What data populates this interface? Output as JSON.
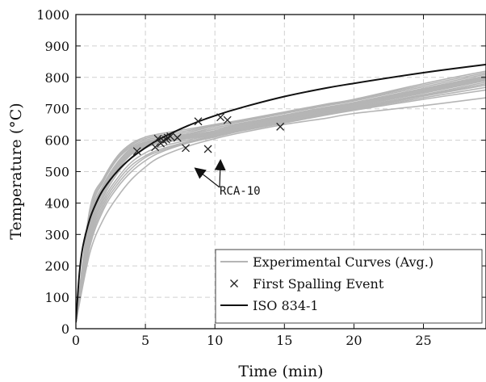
{
  "chart_data": {
    "type": "line",
    "title": "",
    "xlabel": "Time (min)",
    "ylabel": "Temperature (°C)",
    "xlim": [
      0,
      29.5
    ],
    "ylim": [
      0,
      1000
    ],
    "x_ticks": [
      0,
      5,
      10,
      15,
      20,
      25
    ],
    "x_tick_labels": [
      "0",
      "5",
      "10",
      "15",
      "20",
      "25"
    ],
    "y_ticks": [
      0,
      100,
      200,
      300,
      400,
      500,
      600,
      700,
      800,
      900,
      1000
    ],
    "y_tick_labels": [
      "0",
      "100",
      "200",
      "300",
      "400",
      "500",
      "600",
      "700",
      "800",
      "900",
      "1000"
    ],
    "grid": true,
    "legend_position": "bottom-right",
    "legend": [
      {
        "label": "Experimental Curves (Avg.)",
        "marker": "line",
        "color": "#b5b5b5"
      },
      {
        "label": "First Spalling Event",
        "marker": "x",
        "color": "#222222"
      },
      {
        "label": "ISO 834-1",
        "marker": "line",
        "color": "#111111"
      }
    ],
    "iso_curve": {
      "color": "#111111",
      "x": [
        0,
        0.25,
        0.5,
        1,
        1.5,
        2,
        3,
        4,
        5,
        6,
        8,
        10,
        12,
        15,
        18,
        20,
        25,
        29.5
      ],
      "y": [
        20,
        175,
        261,
        349,
        404,
        445,
        502,
        544,
        576,
        603,
        645,
        678,
        705,
        739,
        766,
        781,
        815,
        841
      ]
    },
    "experimental_curves": {
      "color": "#b5b5b5",
      "series": [
        {
          "x": [
            0,
            1,
            2,
            3,
            4,
            5,
            6,
            8,
            10,
            12,
            15,
            18,
            20,
            25,
            29.5
          ],
          "y": [
            20,
            340,
            450,
            520,
            565,
            590,
            600,
            615,
            630,
            650,
            675,
            700,
            715,
            760,
            800
          ]
        },
        {
          "x": [
            0,
            1,
            2,
            3,
            4,
            5,
            6,
            8,
            10,
            12,
            15,
            18,
            20,
            25,
            29.5
          ],
          "y": [
            20,
            320,
            440,
            510,
            560,
            585,
            595,
            610,
            625,
            645,
            670,
            695,
            710,
            755,
            795
          ]
        },
        {
          "x": [
            0,
            1,
            2,
            3,
            4,
            5,
            6,
            8,
            10,
            12,
            15,
            18,
            20,
            25,
            29.5
          ],
          "y": [
            20,
            360,
            470,
            540,
            580,
            600,
            610,
            625,
            645,
            660,
            685,
            710,
            725,
            770,
            810
          ]
        },
        {
          "x": [
            0,
            1,
            2,
            3,
            4,
            5,
            6,
            8,
            10,
            12,
            15,
            18,
            20,
            25,
            29.5
          ],
          "y": [
            20,
            300,
            420,
            495,
            545,
            575,
            590,
            605,
            620,
            640,
            665,
            690,
            705,
            745,
            785
          ]
        },
        {
          "x": [
            0,
            1,
            2,
            3,
            4,
            5,
            6,
            8,
            10,
            12,
            15,
            18,
            20,
            25,
            29.5
          ],
          "y": [
            20,
            380,
            480,
            550,
            590,
            610,
            620,
            635,
            650,
            665,
            690,
            715,
            730,
            780,
            820
          ]
        },
        {
          "x": [
            0,
            1,
            2,
            3,
            4,
            5,
            6,
            8,
            10,
            12,
            15,
            18,
            20,
            25,
            29.5
          ],
          "y": [
            20,
            280,
            400,
            470,
            520,
            550,
            570,
            595,
            615,
            635,
            660,
            685,
            700,
            740,
            775
          ]
        },
        {
          "x": [
            0,
            1,
            2,
            3,
            4,
            5,
            6,
            8,
            10,
            12,
            15,
            18,
            20,
            25,
            29.5
          ],
          "y": [
            20,
            260,
            380,
            450,
            500,
            535,
            560,
            590,
            610,
            630,
            655,
            680,
            695,
            730,
            760
          ]
        },
        {
          "x": [
            0,
            1,
            2,
            3,
            4,
            5,
            6,
            8,
            10,
            12,
            15,
            18,
            20,
            25,
            29.5
          ],
          "y": [
            20,
            240,
            350,
            420,
            475,
            515,
            545,
            580,
            605,
            625,
            650,
            670,
            685,
            710,
            735
          ]
        },
        {
          "x": [
            0,
            1,
            2,
            3,
            4,
            5,
            6,
            8,
            10,
            12,
            15,
            18,
            20,
            25,
            29.5
          ],
          "y": [
            20,
            350,
            460,
            530,
            575,
            595,
            605,
            620,
            640,
            655,
            680,
            705,
            720,
            765,
            805
          ]
        },
        {
          "x": [
            0,
            1,
            2,
            3,
            4,
            5,
            6,
            8,
            10,
            12,
            15,
            18,
            20,
            25,
            29.5
          ],
          "y": [
            20,
            330,
            445,
            515,
            562,
            588,
            598,
            612,
            628,
            648,
            672,
            698,
            712,
            758,
            798
          ]
        },
        {
          "x": [
            0,
            1,
            2,
            3,
            4,
            5,
            6,
            8,
            10,
            12,
            15,
            18,
            20,
            25,
            29.5
          ],
          "y": [
            20,
            310,
            430,
            505,
            555,
            580,
            592,
            607,
            622,
            642,
            668,
            693,
            708,
            750,
            790
          ]
        },
        {
          "x": [
            0,
            1,
            2,
            3,
            4,
            5,
            6,
            8,
            10,
            12,
            15,
            18,
            20,
            25,
            29.5
          ],
          "y": [
            20,
            370,
            475,
            545,
            585,
            605,
            615,
            630,
            648,
            662,
            688,
            712,
            728,
            775,
            815
          ]
        },
        {
          "x": [
            0,
            1,
            2,
            3,
            4,
            5,
            6,
            8,
            10,
            12,
            15,
            18,
            20,
            25,
            29.5
          ],
          "y": [
            20,
            290,
            410,
            480,
            530,
            560,
            578,
            600,
            618,
            638,
            662,
            688,
            702,
            742,
            780
          ]
        },
        {
          "x": [
            0,
            1,
            2,
            3,
            4,
            5,
            6,
            8,
            10,
            12,
            15,
            18,
            20,
            25,
            29.5
          ],
          "y": [
            20,
            345,
            455,
            525,
            570,
            592,
            602,
            618,
            635,
            652,
            678,
            703,
            718,
            762,
            802
          ]
        },
        {
          "x": [
            0,
            1,
            2,
            3,
            4,
            5,
            6,
            8,
            10,
            12,
            15,
            18,
            20,
            25,
            29.5
          ],
          "y": [
            20,
            325,
            442,
            512,
            558,
            582,
            594,
            609,
            624,
            644,
            669,
            694,
            709,
            752,
            792
          ]
        },
        {
          "x": [
            0,
            1,
            2,
            3,
            4,
            5,
            6,
            8,
            10,
            12,
            15,
            18,
            20,
            25,
            29.5
          ],
          "y": [
            20,
            270,
            390,
            460,
            510,
            545,
            565,
            592,
            612,
            632,
            658,
            683,
            698,
            735,
            768
          ]
        }
      ]
    },
    "spalling_events": {
      "color": "#222222",
      "points": [
        {
          "x": 4.4,
          "y": 565
        },
        {
          "x": 5.7,
          "y": 578
        },
        {
          "x": 5.9,
          "y": 605
        },
        {
          "x": 6.1,
          "y": 590
        },
        {
          "x": 6.3,
          "y": 598
        },
        {
          "x": 6.5,
          "y": 602
        },
        {
          "x": 6.6,
          "y": 608
        },
        {
          "x": 6.8,
          "y": 612
        },
        {
          "x": 7.3,
          "y": 608
        },
        {
          "x": 7.9,
          "y": 575
        },
        {
          "x": 8.8,
          "y": 660
        },
        {
          "x": 9.5,
          "y": 572
        },
        {
          "x": 10.4,
          "y": 673
        },
        {
          "x": 10.9,
          "y": 664
        },
        {
          "x": 14.7,
          "y": 643
        }
      ]
    },
    "annotation": {
      "text": "RCA-10",
      "targets": [
        {
          "x": 8.6,
          "y": 510
        },
        {
          "x": 10.4,
          "y": 535
        }
      ]
    }
  }
}
